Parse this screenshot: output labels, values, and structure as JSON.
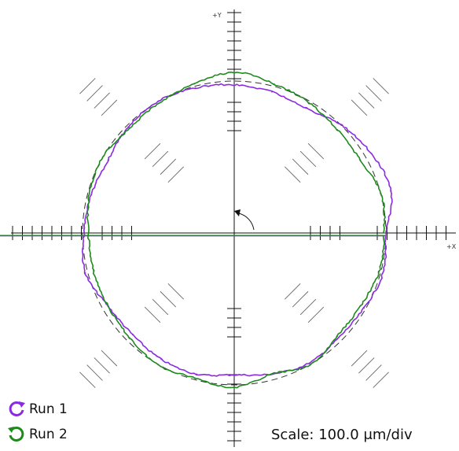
{
  "chart_data": {
    "type": "polar-plot",
    "axis_labels": {
      "y_plus": "+Y",
      "x_plus": "+X"
    },
    "scale_text": "Scale: 100.0 μm/div",
    "rotation_direction": "counter-clockwise",
    "reference_circle": {
      "style": "dashed",
      "color": "#333333"
    },
    "series": [
      {
        "name": "Run 1",
        "color": "#8a2be2",
        "icon": "counter-clockwise-arrow-icon",
        "angles_deg": [
          0,
          15,
          30,
          45,
          60,
          75,
          90,
          105,
          120,
          135,
          150,
          165,
          180,
          195,
          210,
          225,
          240,
          255,
          270,
          285,
          300,
          315,
          330,
          345
        ],
        "radius_divs": [
          7.3,
          7.8,
          7.6,
          7.3,
          6.9,
          7.0,
          7.1,
          7.2,
          7.3,
          7.2,
          7.0,
          7.1,
          7.2,
          7.4,
          7.0,
          6.9,
          7.0,
          7.0,
          6.8,
          7.0,
          7.2,
          7.1,
          7.2,
          7.4
        ]
      },
      {
        "name": "Run 2",
        "color": "#1e8a1e",
        "icon": "clockwise-arrow-icon",
        "angles_deg": [
          0,
          15,
          30,
          45,
          60,
          75,
          90,
          105,
          120,
          135,
          150,
          165,
          180,
          195,
          210,
          225,
          240,
          255,
          270,
          285,
          300,
          315,
          330,
          345
        ],
        "radius_divs": [
          7.2,
          7.3,
          7.0,
          7.0,
          7.2,
          7.4,
          7.7,
          7.4,
          7.2,
          7.1,
          7.3,
          7.2,
          7.0,
          7.0,
          7.0,
          7.1,
          7.3,
          7.2,
          7.4,
          7.0,
          7.3,
          7.0,
          7.0,
          7.2
        ]
      }
    ]
  }
}
